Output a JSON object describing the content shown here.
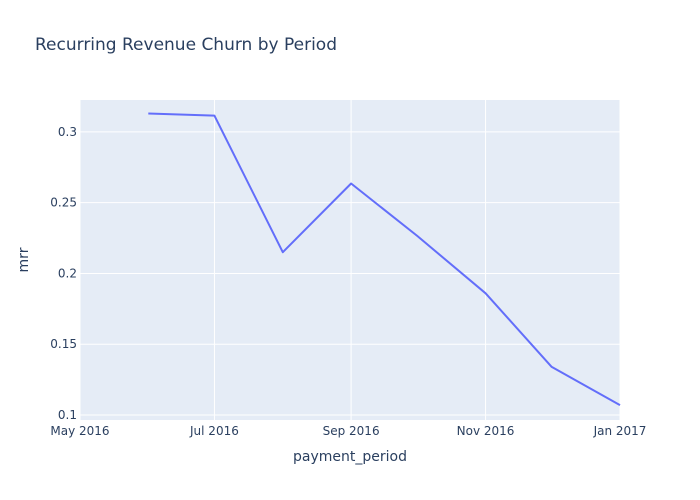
{
  "chart_data": {
    "type": "line",
    "title": "Recurring Revenue Churn by Period",
    "xlabel": "payment_period",
    "ylabel": "mrr",
    "x_ticks": [
      "May 2016",
      "Jul 2016",
      "Sep 2016",
      "Nov 2016",
      "Jan 2017"
    ],
    "x_tick_dates": [
      "2016-05-01",
      "2016-07-01",
      "2016-09-01",
      "2016-11-01",
      "2017-01-01"
    ],
    "y_ticks": [
      "0.1",
      "0.15",
      "0.2",
      "0.25",
      "0.3"
    ],
    "y_tick_values": [
      0.1,
      0.15,
      0.2,
      0.25,
      0.3
    ],
    "xlim": [
      "2016-05-01",
      "2017-01-01"
    ],
    "ylim": [
      0.0965,
      0.3225
    ],
    "grid": true,
    "series": [
      {
        "color": "#636efa",
        "x": [
          "2016-06-01",
          "2016-07-01",
          "2016-08-01",
          "2016-09-01",
          "2016-10-01",
          "2016-11-01",
          "2016-12-01",
          "2017-01-01"
        ],
        "y": [
          0.313,
          0.3115,
          0.215,
          0.2635,
          0.2265,
          0.186,
          0.134,
          0.107
        ]
      }
    ]
  },
  "colors": {
    "plot_bg": "#e5ecf6",
    "grid": "#ffffff",
    "text": "#2a3f5f"
  }
}
